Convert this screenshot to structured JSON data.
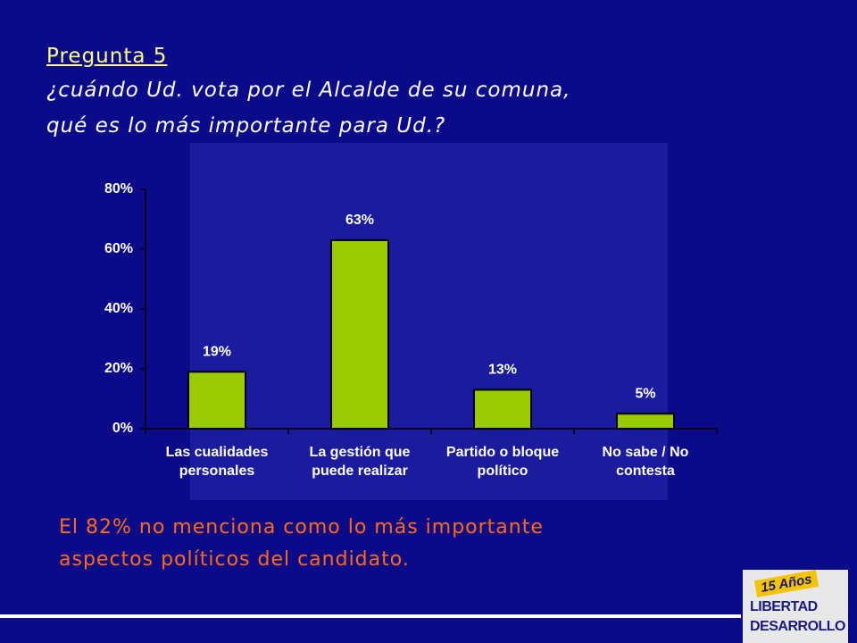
{
  "header": {
    "title": "Pregunta 5",
    "question": [
      "¿cuándo Ud. vota por el Alcalde de su comuna,",
      "qué es lo más importante para Ud.?"
    ]
  },
  "chart_data": {
    "type": "bar",
    "categories": [
      "Las cualidades personales",
      "La gestión que puede realizar",
      "Partido o bloque político",
      "No sabe / No contesta"
    ],
    "values": [
      19,
      63,
      13,
      5
    ],
    "value_labels": [
      "19%",
      "63%",
      "13%",
      "5%"
    ],
    "color": "#99cc00",
    "ylim": [
      0,
      80
    ],
    "yticks": [
      {
        "value": 0,
        "label": "0%"
      },
      {
        "value": 20,
        "label": "20%"
      },
      {
        "value": 40,
        "label": "40%"
      },
      {
        "value": 60,
        "label": "60%"
      },
      {
        "value": 80,
        "label": "80%"
      }
    ],
    "grid": false
  },
  "footnote": [
    "El 82% no menciona como lo más importante",
    "aspectos políticos del candidato."
  ],
  "logo": {
    "badge": "15 Años",
    "line1": "LIBERTAD",
    "line2": "DESARROLLO"
  }
}
